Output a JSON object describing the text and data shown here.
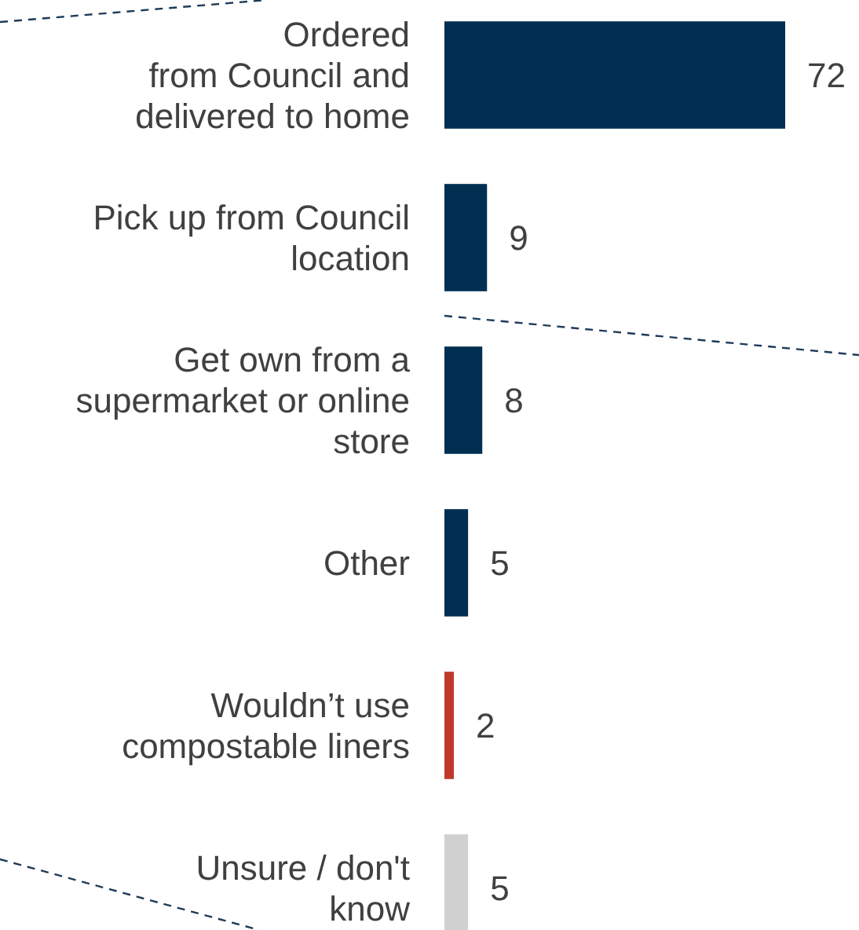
{
  "chart_data": {
    "type": "bar",
    "orientation": "horizontal",
    "categories": [
      "Ordered\nfrom Council and\ndelivered to home",
      "Pick up from Council\nlocation",
      "Get own from a\nsupermarket or online\nstore",
      "Other",
      "Wouldn’t use\ncompostable liners",
      "Unsure / don't\nknow"
    ],
    "values": [
      72,
      9,
      8,
      5,
      2,
      5
    ],
    "colors": [
      "#002f52",
      "#002f52",
      "#002f52",
      "#002f52",
      "#c0392b",
      "#d0d0d0"
    ],
    "data_labels": true
  }
}
